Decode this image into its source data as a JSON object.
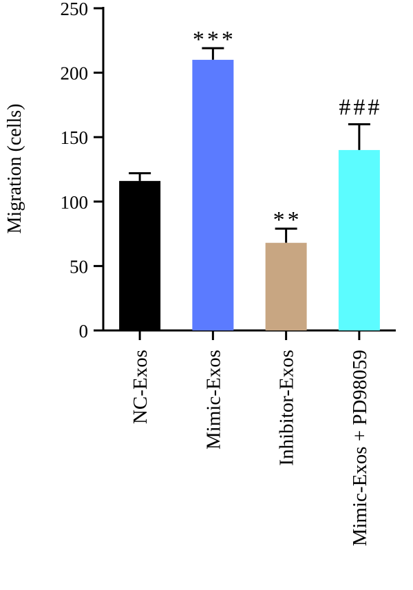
{
  "chart_data": {
    "type": "bar",
    "title": "",
    "xlabel": "",
    "ylabel": "Migration (cells)",
    "ylim": [
      0,
      250
    ],
    "yticks": [
      0,
      50,
      100,
      150,
      200,
      250
    ],
    "categories": [
      "NC-Exos",
      "Mimic-Exos",
      "Inhibitor-Exos",
      "Mimic-Exos + PD98059"
    ],
    "values": [
      116,
      210,
      68,
      140
    ],
    "errors": [
      6,
      9,
      11,
      20
    ],
    "annotations": [
      "",
      "***",
      "**",
      "###"
    ],
    "colors": [
      "#000000",
      "#5b7bff",
      "#c8a682",
      "#5cfcff"
    ],
    "grid": false,
    "legend": "none"
  }
}
